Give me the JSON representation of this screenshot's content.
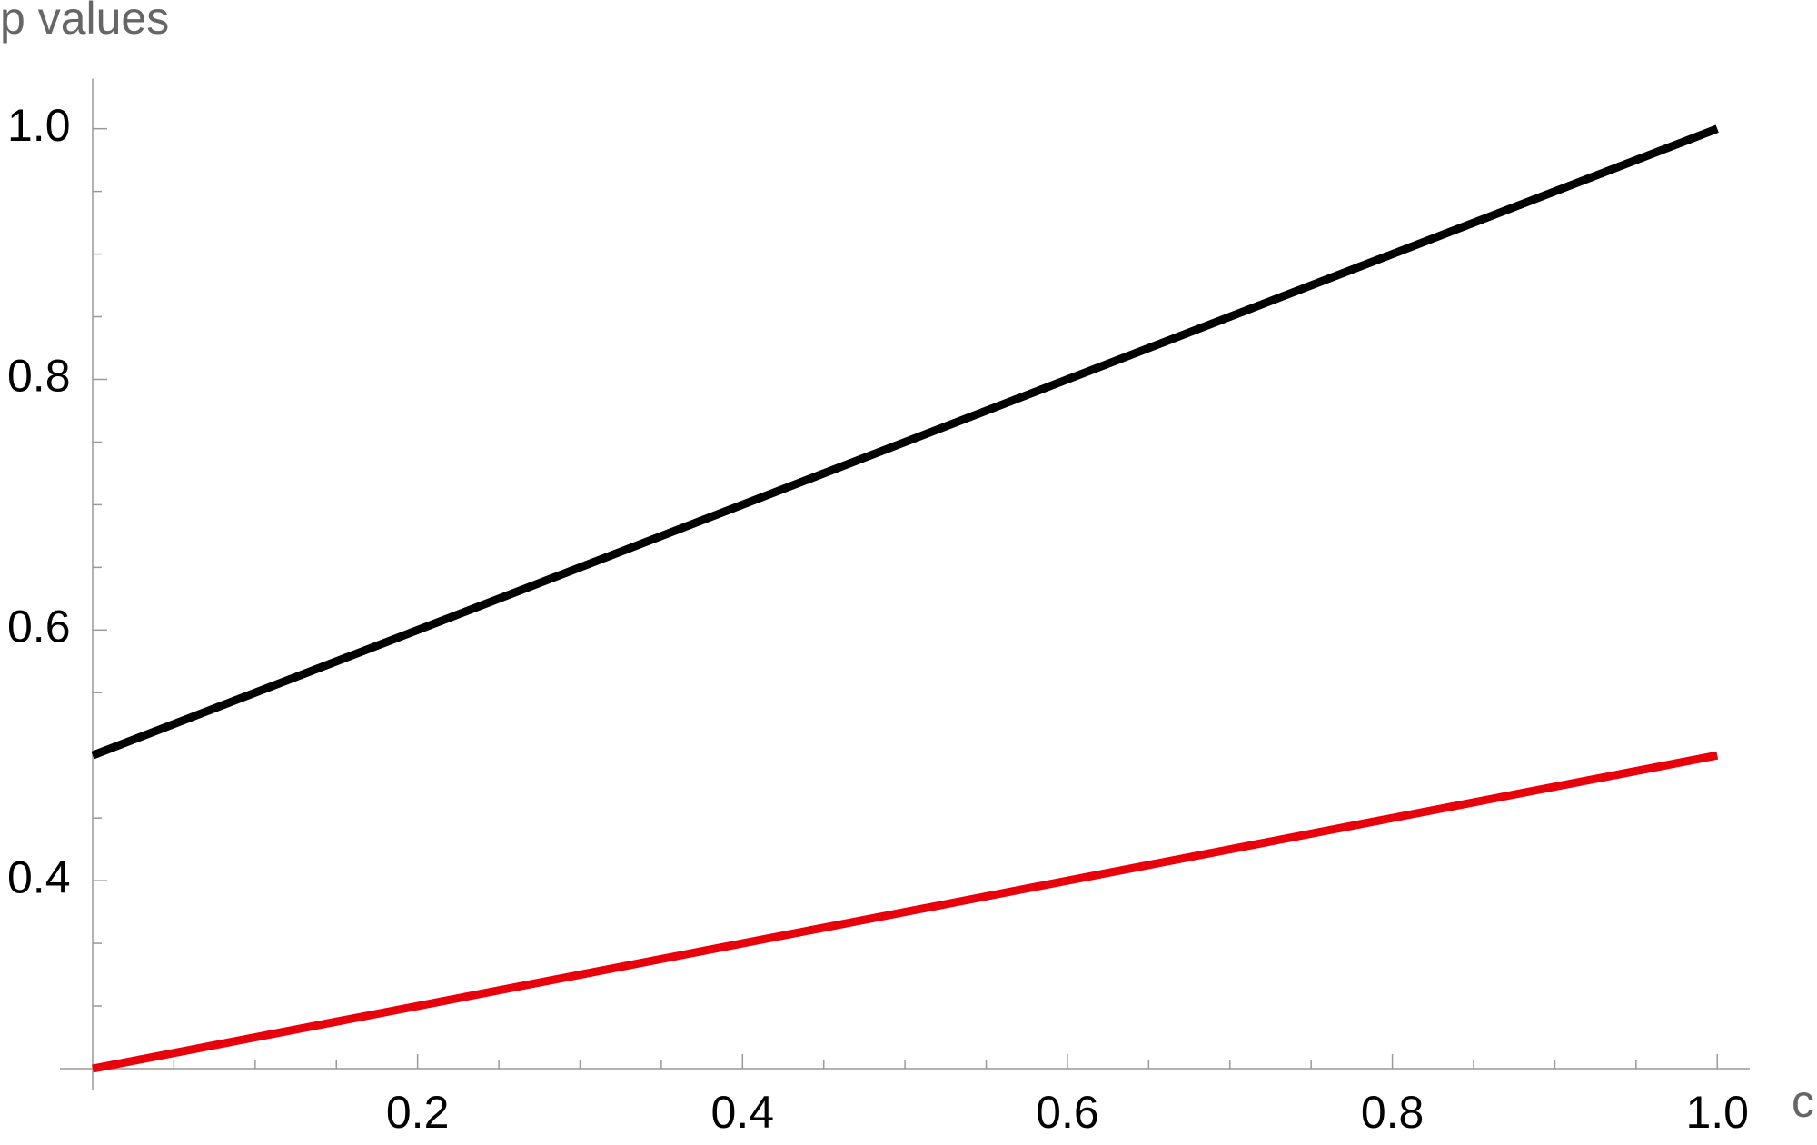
{
  "chart_data": {
    "type": "line",
    "xlabel": "c",
    "ylabel": "p values",
    "x": [
      0,
      1
    ],
    "series": [
      {
        "color": "#000000",
        "values": [
          0.5,
          1.0
        ]
      },
      {
        "color": "#e8000b",
        "values": [
          0.25,
          0.5
        ]
      }
    ],
    "xlim": [
      0,
      1.02
    ],
    "ylim": [
      0.25,
      1.04
    ],
    "xticks": [
      0.2,
      0.4,
      0.6,
      0.8,
      {
        "value": 1,
        "label": "1.0"
      }
    ],
    "yticks": [
      0.4,
      0.6,
      0.8,
      {
        "value": 1,
        "label": "1.0"
      }
    ],
    "xminorticks": [
      0.05,
      0.1,
      0.15,
      0.25,
      0.3,
      0.35,
      0.45,
      0.5,
      0.55,
      0.65,
      0.7,
      0.75,
      0.85,
      0.9,
      0.95
    ],
    "yminorticks": [
      0.3,
      0.35,
      0.45,
      0.5,
      0.55,
      0.65,
      0.7,
      0.75,
      0.85,
      0.9,
      0.95
    ],
    "grid": false
  }
}
